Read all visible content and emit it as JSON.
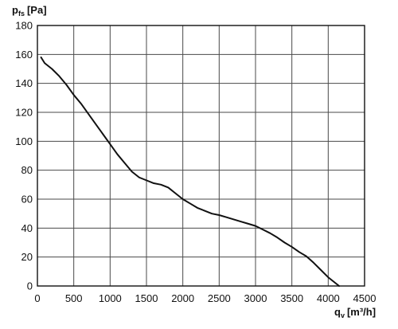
{
  "chart_data": {
    "type": "line",
    "title": "",
    "ylabel": {
      "main": "p",
      "sub": "fs",
      "unit": "[Pa]"
    },
    "xlabel": {
      "main": "q",
      "sub": "v",
      "unit": "[m³/h]"
    },
    "xlim": [
      0,
      4500
    ],
    "ylim": [
      0,
      180
    ],
    "x_ticks": [
      0,
      500,
      1000,
      1500,
      2000,
      2500,
      3000,
      3500,
      4000,
      4500
    ],
    "y_ticks": [
      0,
      20,
      40,
      60,
      80,
      100,
      120,
      140,
      160,
      180
    ],
    "grid": true,
    "series": [
      {
        "x": [
          50,
          100,
          200,
          300,
          400,
          500,
          600,
          700,
          800,
          900,
          1000,
          1100,
          1200,
          1300,
          1400,
          1500,
          1600,
          1700,
          1800,
          1900,
          2000,
          2100,
          2200,
          2300,
          2400,
          2500,
          2600,
          2700,
          2800,
          2900,
          3000,
          3100,
          3200,
          3300,
          3400,
          3500,
          3600,
          3700,
          3800,
          3900,
          4000,
          4100,
          4150
        ],
        "values": [
          158,
          154,
          150,
          145,
          139,
          132,
          126,
          119,
          112,
          105,
          98,
          91,
          85,
          79,
          75,
          73,
          71,
          70,
          68,
          64,
          60,
          57,
          54,
          52,
          50,
          49,
          47.5,
          46,
          44.5,
          43,
          41.5,
          39,
          36.5,
          33.5,
          30,
          27,
          23.5,
          20.5,
          16,
          11,
          6,
          2,
          0
        ]
      }
    ],
    "colors": {
      "curve": "#111111",
      "grid": "#4a4a4a",
      "frame": "#111111"
    }
  }
}
